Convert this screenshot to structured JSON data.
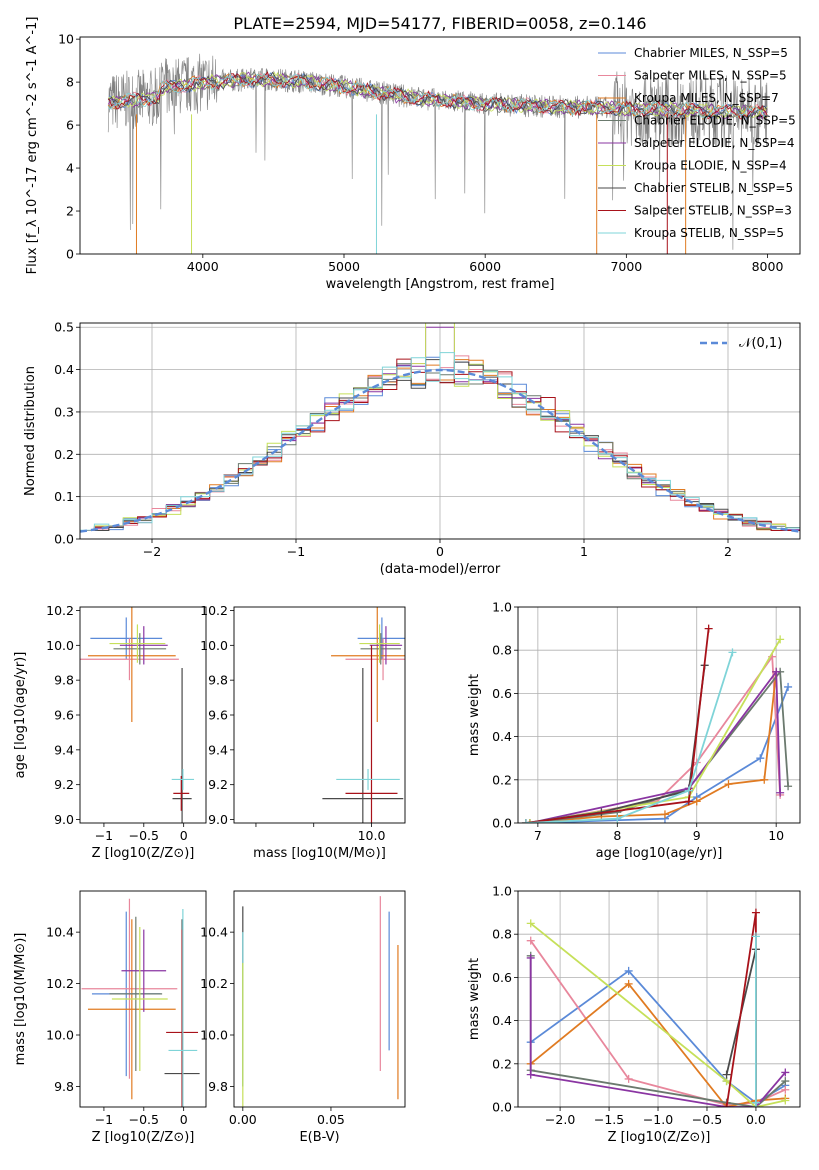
{
  "title": "PLATE=2594, MJD=54177, FIBERID=0058, z=0.146",
  "chart_data": [
    {
      "id": "spectrum",
      "type": "line",
      "xlabel": "wavelength [Angstrom, rest frame]",
      "ylabel": "Flux [f_λ 10^-17 erg cm^-2 s^-1 A^-1]",
      "xlim": [
        3130,
        8230
      ],
      "ylim": [
        0,
        10.1
      ],
      "xticks": [
        4000,
        5000,
        6000,
        7000,
        8000
      ],
      "yticks": [
        0,
        2,
        4,
        6,
        8,
        10
      ],
      "grid": false,
      "legend": "top-right",
      "data_series": {
        "name": "",
        "color": "#808080",
        "x_range": [
          3330,
          8000
        ],
        "level": 7.3
      },
      "series": [
        {
          "name": "Chabrier MILES, N_SSP=5",
          "color": "#5b8ad8"
        },
        {
          "name": "Salpeter MILES, N_SSP=5",
          "color": "#e8879c"
        },
        {
          "name": "Kroupa MILES, N_SSP=7",
          "color": "#e07b22"
        },
        {
          "name": "Chabrier ELODIE, N_SSP=5",
          "color": "#6b7a6e"
        },
        {
          "name": "Salpeter ELODIE, N_SSP=4",
          "color": "#8a35a2"
        },
        {
          "name": "Kroupa ELODIE, N_SSP=4",
          "color": "#c6e05a"
        },
        {
          "name": "Chabrier STELIB, N_SSP=5",
          "color": "#4a4a4a"
        },
        {
          "name": "Salpeter STELIB, N_SSP=3",
          "color": "#a8121a"
        },
        {
          "name": "Kroupa STELIB, N_SSP=5",
          "color": "#7fd4d8"
        }
      ]
    },
    {
      "id": "residuals",
      "type": "line",
      "xlabel": "(data-model)/error",
      "ylabel": "Normed distribution",
      "xlim": [
        -2.5,
        2.5
      ],
      "ylim": [
        0,
        0.51
      ],
      "xticks": [
        -2,
        -1,
        0,
        1,
        2
      ],
      "yticks": [
        0.0,
        0.1,
        0.2,
        0.3,
        0.4,
        0.5
      ],
      "grid": true,
      "legend": "top-right",
      "reference": {
        "name": "𝒩(0,1)",
        "color": "#5b8ad8",
        "dash": true
      }
    },
    {
      "id": "age-vs-Z",
      "type": "scatter",
      "xlabel": "Z [log10(Z/Z⊙)]",
      "ylabel": "age [log10(age/yr)]",
      "xlim": [
        -1.3,
        0.28
      ],
      "ylim": [
        8.98,
        10.22
      ],
      "xticks": [
        -1,
        -0.5,
        0
      ],
      "xtick_labels": [
        "−1",
        "−0.5",
        "0"
      ],
      "yticks": [
        9.0,
        9.2,
        9.4,
        9.6,
        9.8,
        10.0,
        10.2
      ],
      "grid": false,
      "points": [
        {
          "x": -0.72,
          "xerr": 0.45,
          "y": 10.04,
          "yerr": 0.12,
          "color": "#5b8ad8"
        },
        {
          "x": -0.68,
          "xerr": 0.62,
          "y": 9.92,
          "yerr": 0.12,
          "color": "#e8879c"
        },
        {
          "x": -0.65,
          "xerr": 0.55,
          "y": 9.94,
          "yerr": 0.38,
          "color": "#e07b22"
        },
        {
          "x": -0.55,
          "xerr": 0.33,
          "y": 9.98,
          "yerr": 0.09,
          "color": "#6b7a6e"
        },
        {
          "x": -0.5,
          "xerr": 0.3,
          "y": 10.0,
          "yerr": 0.11,
          "color": "#8a35a2"
        },
        {
          "x": -0.58,
          "xerr": 0.35,
          "y": 10.01,
          "yerr": 0.11,
          "color": "#c6e05a"
        },
        {
          "x": -0.02,
          "xerr": 0.12,
          "y": 9.12,
          "yerr": 0.75,
          "color": "#4a4a4a"
        },
        {
          "x": -0.03,
          "xerr": 0.1,
          "y": 9.15,
          "yerr": 0.1,
          "color": "#a8121a"
        },
        {
          "x": -0.01,
          "xerr": 0.14,
          "y": 9.23,
          "yerr": 0.06,
          "color": "#7fd4d8"
        }
      ]
    },
    {
      "id": "age-vs-mass",
      "type": "scatter",
      "xlabel": "mass [log10(M/M⊙)]",
      "ylabel": "",
      "xlim": [
        7.62,
        10.58
      ],
      "ylim": [
        8.98,
        10.22
      ],
      "xticks": [
        8.0,
        9.0,
        10.0
      ],
      "xtick_labels": [
        "",
        "",
        "10.0"
      ],
      "yticks": [
        9.0,
        9.2,
        9.4,
        9.6,
        9.8,
        10.0,
        10.2
      ],
      "grid": false,
      "points": [
        {
          "x": 10.18,
          "xerr": 0.42,
          "y": 10.04,
          "yerr": 0.12,
          "color": "#5b8ad8"
        },
        {
          "x": 10.2,
          "xerr": 0.65,
          "y": 9.92,
          "yerr": 0.12,
          "color": "#e8879c"
        },
        {
          "x": 10.1,
          "xerr": 0.8,
          "y": 9.94,
          "yerr": 0.38,
          "color": "#e07b22"
        },
        {
          "x": 10.16,
          "xerr": 0.35,
          "y": 9.98,
          "yerr": 0.09,
          "color": "#6b7a6e"
        },
        {
          "x": 10.25,
          "xerr": 0.28,
          "y": 10.0,
          "yerr": 0.11,
          "color": "#8a35a2"
        },
        {
          "x": 10.14,
          "xerr": 0.35,
          "y": 10.01,
          "yerr": 0.11,
          "color": "#c6e05a"
        },
        {
          "x": 9.85,
          "xerr": 0.7,
          "y": 9.12,
          "yerr": 0.75,
          "color": "#4a4a4a"
        },
        {
          "x": 10.0,
          "xerr": 0.45,
          "y": 9.15,
          "yerr": 0.85,
          "color": "#a8121a"
        },
        {
          "x": 9.94,
          "xerr": 0.55,
          "y": 9.23,
          "yerr": 0.06,
          "color": "#7fd4d8"
        }
      ]
    },
    {
      "id": "weight-vs-age",
      "type": "line",
      "xlabel": "age [log10(age/yr)]",
      "ylabel": "mass weight",
      "xlim": [
        6.75,
        10.3
      ],
      "ylim": [
        0,
        1.0
      ],
      "xticks": [
        7,
        8,
        9,
        10
      ],
      "yticks": [
        0.0,
        0.2,
        0.4,
        0.6,
        0.8,
        1.0
      ],
      "grid": true,
      "series": [
        {
          "name": "Chabrier MILES, N_SSP=5",
          "color": "#5b8ad8",
          "x": [
            6.9,
            8.6,
            9.0,
            9.8,
            10.15
          ],
          "y": [
            0.0,
            0.02,
            0.12,
            0.3,
            0.63
          ]
        },
        {
          "name": "Salpeter MILES, N_SSP=5",
          "color": "#e8879c",
          "x": [
            6.9,
            8.5,
            9.0,
            9.95,
            10.05
          ],
          "y": [
            0.0,
            0.1,
            0.28,
            0.77,
            0.13
          ]
        },
        {
          "name": "Kroupa MILES, N_SSP=7",
          "color": "#e07b22",
          "x": [
            6.9,
            7.8,
            8.6,
            9.0,
            9.4,
            9.85,
            10.0
          ],
          "y": [
            0.0,
            0.03,
            0.04,
            0.1,
            0.18,
            0.2,
            0.7
          ]
        },
        {
          "name": "Chabrier ELODIE, N_SSP=5",
          "color": "#6b7a6e",
          "x": [
            6.9,
            8.0,
            8.9,
            10.05,
            10.15
          ],
          "y": [
            0.0,
            0.05,
            0.16,
            0.7,
            0.17
          ]
        },
        {
          "name": "Salpeter ELODIE, N_SSP=4",
          "color": "#8a35a2",
          "x": [
            6.9,
            8.9,
            10.0,
            10.05
          ],
          "y": [
            0.0,
            0.16,
            0.7,
            0.14
          ]
        },
        {
          "name": "Kroupa ELODIE, N_SSP=4",
          "color": "#c6e05a",
          "x": [
            6.9,
            8.9,
            10.05
          ],
          "y": [
            0.0,
            0.12,
            0.85
          ]
        },
        {
          "name": "Chabrier STELIB, N_SSP=5",
          "color": "#4a4a4a",
          "x": [
            6.85,
            7.8,
            8.9,
            9.1
          ],
          "y": [
            0.0,
            0.05,
            0.15,
            0.73
          ]
        },
        {
          "name": "Salpeter STELIB, N_SSP=3",
          "color": "#a8121a",
          "x": [
            6.85,
            8.9,
            9.15
          ],
          "y": [
            0.0,
            0.1,
            0.9
          ]
        },
        {
          "name": "Kroupa STELIB, N_SSP=5",
          "color": "#7fd4d8",
          "x": [
            6.85,
            8.0,
            8.9,
            9.45
          ],
          "y": [
            0.0,
            0.02,
            0.15,
            0.79
          ]
        }
      ]
    },
    {
      "id": "mass-vs-Z",
      "type": "scatter",
      "xlabel": "Z [log10(Z/Z⊙)]",
      "ylabel": "mass [log10(M/M⊙)]",
      "xlim": [
        -1.3,
        0.28
      ],
      "ylim": [
        9.72,
        10.56
      ],
      "xticks": [
        -1,
        -0.5,
        0
      ],
      "xtick_labels": [
        "−1",
        "−0.5",
        "0"
      ],
      "yticks": [
        9.8,
        10.0,
        10.2,
        10.4
      ],
      "grid": false,
      "points": [
        {
          "x": -0.72,
          "xerr": 0.43,
          "y": 10.16,
          "yerr": 0.32,
          "color": "#5b8ad8"
        },
        {
          "x": -0.68,
          "xerr": 0.6,
          "y": 10.18,
          "yerr": 0.35,
          "color": "#e8879c"
        },
        {
          "x": -0.65,
          "xerr": 0.55,
          "y": 10.1,
          "yerr": 0.35,
          "color": "#e07b22"
        },
        {
          "x": -0.6,
          "xerr": 0.33,
          "y": 10.16,
          "yerr": 0.3,
          "color": "#6b7a6e"
        },
        {
          "x": -0.5,
          "xerr": 0.28,
          "y": 10.25,
          "yerr": 0.16,
          "color": "#8a35a2"
        },
        {
          "x": -0.55,
          "xerr": 0.35,
          "y": 10.14,
          "yerr": 0.28,
          "color": "#c6e05a"
        },
        {
          "x": -0.02,
          "xerr": 0.22,
          "y": 9.85,
          "yerr": 0.6,
          "color": "#4a4a4a"
        },
        {
          "x": -0.02,
          "xerr": 0.2,
          "y": 10.01,
          "yerr": 0.4,
          "color": "#a8121a"
        },
        {
          "x": -0.01,
          "xerr": 0.18,
          "y": 9.94,
          "yerr": 0.55,
          "color": "#7fd4d8"
        }
      ]
    },
    {
      "id": "mass-vs-EBV",
      "type": "scatter",
      "xlabel": "E(B-V)",
      "ylabel": "",
      "xlim": [
        -0.005,
        0.092
      ],
      "ylim": [
        9.72,
        10.56
      ],
      "xticks": [
        0.0,
        0.05
      ],
      "xtick_labels": [
        "0.00",
        "0.05"
      ],
      "yticks": [
        9.8,
        10.0,
        10.2,
        10.4
      ],
      "grid": false,
      "points": [
        {
          "x": 0.0,
          "y": 10.15,
          "yerr": 0.35,
          "color": "#4a4a4a"
        },
        {
          "x": 0.0,
          "y": 10.1,
          "yerr": 0.3,
          "color": "#7fd4d8"
        },
        {
          "x": 0.0,
          "y": 10.0,
          "yerr": 0.28,
          "color": "#c6e05a"
        },
        {
          "x": 0.078,
          "y": 10.2,
          "yerr": 0.34,
          "color": "#e8879c"
        },
        {
          "x": 0.083,
          "y": 10.21,
          "yerr": 0.27,
          "color": "#5b8ad8"
        },
        {
          "x": 0.088,
          "y": 10.05,
          "yerr": 0.3,
          "color": "#e07b22"
        }
      ]
    },
    {
      "id": "weight-vs-Z",
      "type": "line",
      "xlabel": "Z [log10(Z/Z⊙)]",
      "ylabel": "mass weight",
      "xlim": [
        -2.43,
        0.45
      ],
      "ylim": [
        0,
        1.0
      ],
      "xticks": [
        -2.0,
        -1.5,
        -1.0,
        -0.5,
        0.0
      ],
      "yticks": [
        0.0,
        0.2,
        0.4,
        0.6,
        0.8,
        1.0
      ],
      "grid": true,
      "series": [
        {
          "name": "Chabrier MILES, N_SSP=5",
          "color": "#5b8ad8",
          "x": [
            -2.3,
            -1.3,
            -0.3,
            0.0,
            0.3
          ],
          "y": [
            0.3,
            0.63,
            0.12,
            0.02,
            0.1
          ]
        },
        {
          "name": "Salpeter MILES, N_SSP=5",
          "color": "#e8879c",
          "x": [
            -2.3,
            -1.3,
            -0.3,
            0.0,
            0.3
          ],
          "y": [
            0.77,
            0.13,
            0.01,
            0.02,
            0.08
          ]
        },
        {
          "name": "Kroupa MILES, N_SSP=7",
          "color": "#e07b22",
          "x": [
            -2.3,
            -1.3,
            -0.3,
            0.0,
            0.3
          ],
          "y": [
            0.2,
            0.57,
            0.0,
            0.03,
            0.04
          ]
        },
        {
          "name": "Chabrier ELODIE, N_SSP=5",
          "color": "#6b7a6e",
          "x": [
            -2.3,
            -2.3,
            -0.3,
            0.0,
            0.3
          ],
          "y": [
            0.7,
            0.17,
            0.02,
            0.0,
            0.12
          ]
        },
        {
          "name": "Salpeter ELODIE, N_SSP=4",
          "color": "#8a35a2",
          "x": [
            -2.3,
            -2.3,
            -0.3,
            0.0,
            0.3
          ],
          "y": [
            0.69,
            0.15,
            0.0,
            0.0,
            0.16
          ]
        },
        {
          "name": "Kroupa ELODIE, N_SSP=4",
          "color": "#c6e05a",
          "x": [
            -2.3,
            -0.3,
            0.0,
            0.3
          ],
          "y": [
            0.85,
            0.12,
            0.0,
            0.03
          ]
        },
        {
          "name": "Chabrier STELIB, N_SSP=5",
          "color": "#4a4a4a",
          "x": [
            -0.3,
            0.0,
            0.0
          ],
          "y": [
            0.15,
            0.73,
            0.0
          ]
        },
        {
          "name": "Salpeter STELIB, N_SSP=3",
          "color": "#a8121a",
          "x": [
            -0.3,
            0.0,
            0.0
          ],
          "y": [
            0.0,
            0.9,
            0.0
          ]
        },
        {
          "name": "Kroupa STELIB, N_SSP=5",
          "color": "#7fd4d8",
          "x": [
            0.0,
            0.0,
            0.0
          ],
          "y": [
            0.0,
            0.79,
            0.02
          ]
        }
      ]
    }
  ]
}
